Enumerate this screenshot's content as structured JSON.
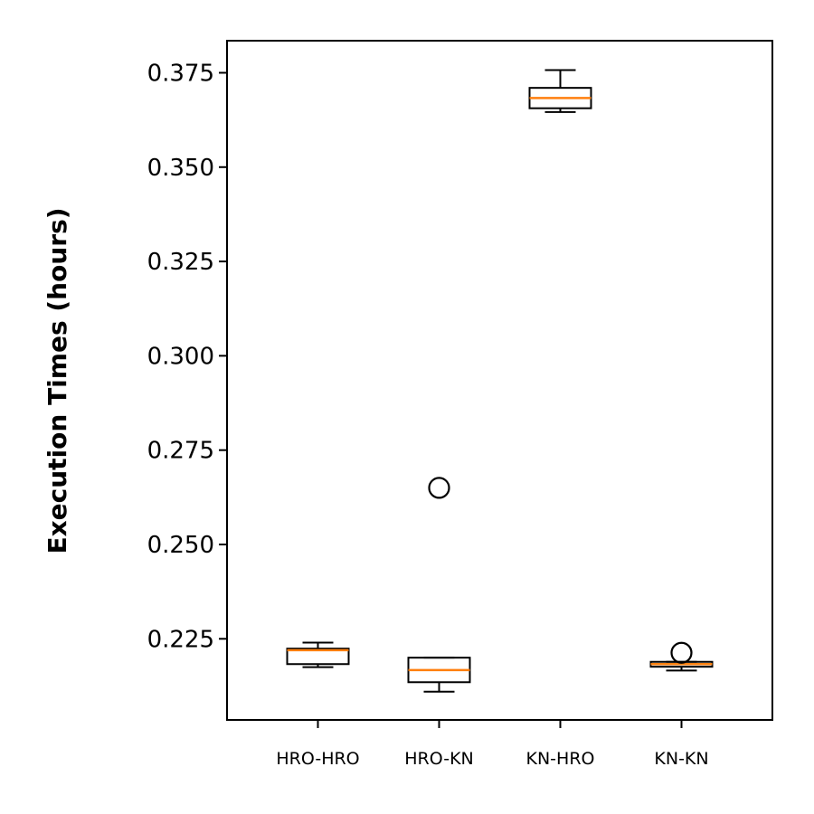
{
  "chart_data": {
    "type": "boxplot",
    "title": "",
    "xlabel": "",
    "ylabel": "Execution Times (hours)",
    "ylim": [
      0.2035,
      0.3835
    ],
    "yticks": [
      0.225,
      0.25,
      0.275,
      0.3,
      0.325,
      0.35,
      0.375
    ],
    "ytick_labels": [
      "0.225",
      "0.250",
      "0.275",
      "0.300",
      "0.325",
      "0.350",
      "0.375"
    ],
    "grid": false,
    "legend": "none",
    "categories": [
      "HRO-HRO",
      "HRO-KN",
      "KN-HRO",
      "KN-KN"
    ],
    "boxes": [
      {
        "category": "HRO-HRO",
        "whisker_low": 0.2175,
        "q1": 0.2183,
        "median": 0.222,
        "q3": 0.2224,
        "whisker_high": 0.224,
        "outliers": []
      },
      {
        "category": "HRO-KN",
        "whisker_low": 0.211,
        "q1": 0.2135,
        "median": 0.2167,
        "q3": 0.22,
        "whisker_high": 0.22,
        "outliers": [
          0.265
        ]
      },
      {
        "category": "KN-HRO",
        "whisker_low": 0.3646,
        "q1": 0.3656,
        "median": 0.3683,
        "q3": 0.371,
        "whisker_high": 0.3757,
        "outliers": []
      },
      {
        "category": "KN-KN",
        "whisker_low": 0.2166,
        "q1": 0.2176,
        "median": 0.2183,
        "q3": 0.2189,
        "whisker_high": 0.2189,
        "outliers": [
          0.2213
        ]
      }
    ],
    "colors": {
      "box": "#000000",
      "median": "#ff7f0e",
      "outlier": "#000000"
    }
  }
}
